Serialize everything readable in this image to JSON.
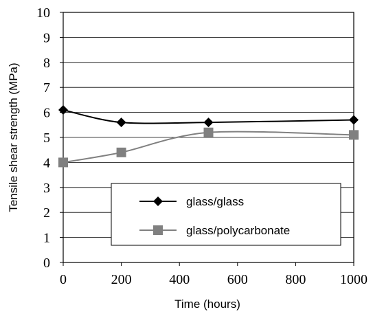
{
  "chart_data": {
    "type": "line",
    "xlabel": "Time (hours)",
    "ylabel": "Tensile shear strength (MPa)",
    "xlim": [
      0,
      1000
    ],
    "ylim": [
      0,
      10
    ],
    "x_ticks": [
      "0",
      "200",
      "400",
      "600",
      "800",
      "1000"
    ],
    "y_ticks": [
      "0",
      "1",
      "2",
      "3",
      "4",
      "5",
      "6",
      "7",
      "8",
      "9",
      "10"
    ],
    "grid": "horizontal",
    "legend_position": "lower-center",
    "series": [
      {
        "name": "glass/glass",
        "marker": "diamond",
        "color": "#000000",
        "x": [
          0,
          200,
          500,
          1000
        ],
        "values": [
          6.1,
          5.6,
          5.6,
          5.7
        ]
      },
      {
        "name": "glass/polycarbonate",
        "marker": "square",
        "color": "#808080",
        "x": [
          0,
          200,
          500,
          1000
        ],
        "values": [
          4.0,
          4.4,
          5.2,
          5.1
        ]
      }
    ]
  }
}
